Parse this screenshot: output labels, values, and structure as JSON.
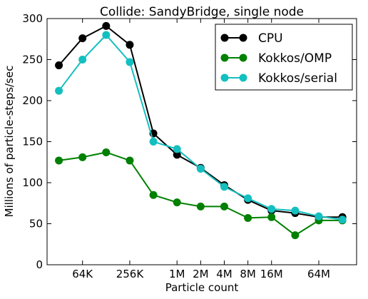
{
  "chart_data": {
    "type": "line",
    "title": "Collide: SandyBridge, single node",
    "xlabel": "Particle count",
    "ylabel": "Millions of particle-steps/sec",
    "x_scale": "log2",
    "xlim_log2": [
      14.5,
      27.6
    ],
    "ylim": [
      0,
      300
    ],
    "yticks": [
      0,
      50,
      100,
      150,
      200,
      250,
      300
    ],
    "xticks": [
      {
        "label": "64K",
        "log2": 16
      },
      {
        "label": "256K",
        "log2": 18
      },
      {
        "label": "1M",
        "log2": 20
      },
      {
        "label": "2M",
        "log2": 21
      },
      {
        "label": "4M",
        "log2": 22
      },
      {
        "label": "8M",
        "log2": 23
      },
      {
        "label": "16M",
        "log2": 24
      },
      {
        "label": "64M",
        "log2": 26
      }
    ],
    "x_log2": [
      15,
      16,
      17,
      18,
      19,
      20,
      21,
      22,
      23,
      24,
      25,
      26,
      27
    ],
    "grid": false,
    "legend_position": "top-right",
    "series": [
      {
        "name": "CPU",
        "color": "#000000",
        "values": [
          243,
          276,
          291,
          268,
          160,
          134,
          118,
          97,
          79,
          66,
          63,
          58,
          58
        ]
      },
      {
        "name": "Kokkos/OMP",
        "color": "#008000",
        "values": [
          127,
          131,
          137,
          127,
          85,
          76,
          71,
          71,
          57,
          58,
          36,
          54,
          54
        ]
      },
      {
        "name": "Kokkos/serial",
        "color": "#14bfbf",
        "values": [
          212,
          250,
          280,
          247,
          150,
          141,
          117,
          95,
          81,
          68,
          66,
          59,
          55
        ]
      }
    ]
  }
}
